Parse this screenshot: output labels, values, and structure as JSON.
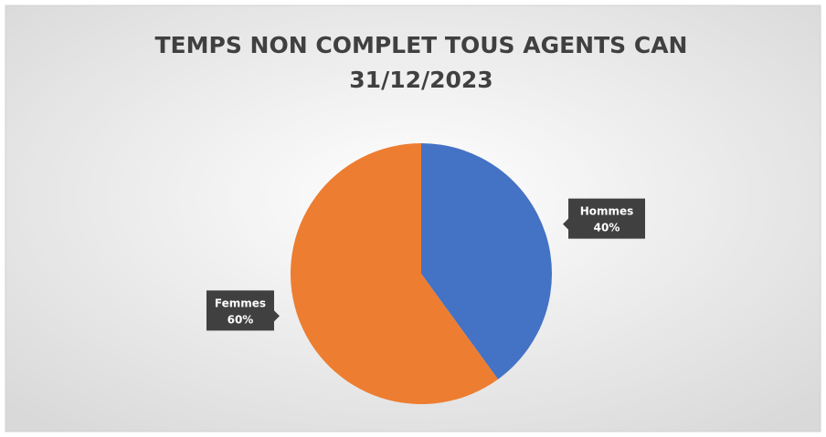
{
  "chart_data": {
    "type": "pie",
    "title": [
      "TEMPS NON COMPLET TOUS AGENTS CAN",
      "31/12/2023"
    ],
    "categories": [
      "Hommes",
      "Femmes"
    ],
    "values": [
      40,
      60
    ],
    "value_labels": [
      "40%",
      "60%"
    ],
    "colors": [
      "#4472c4",
      "#ed7d31"
    ]
  }
}
